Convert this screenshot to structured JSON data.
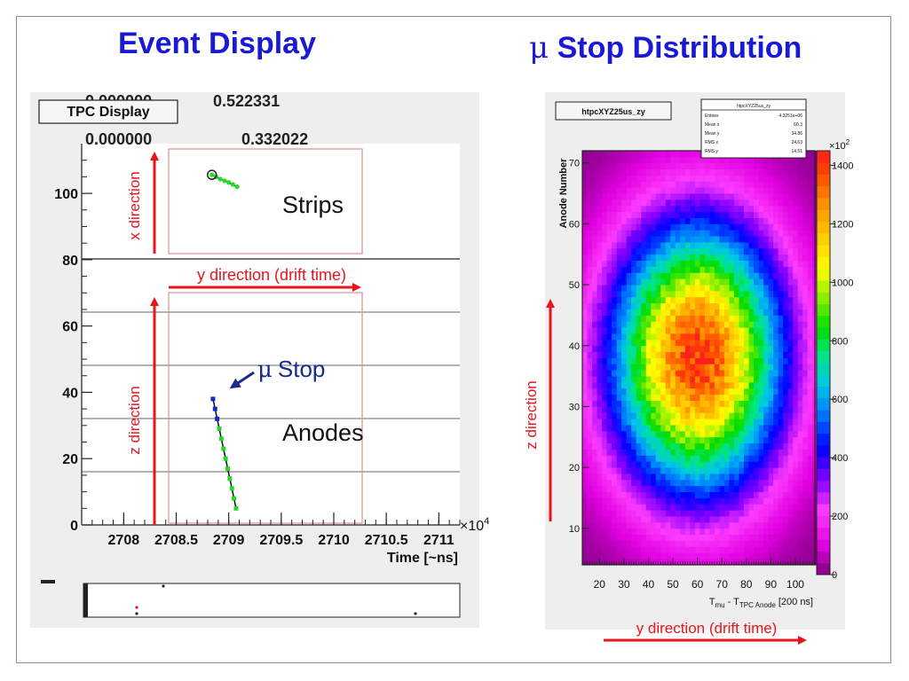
{
  "titles": {
    "left": "Event Display",
    "right_symbol": "μ",
    "right_text": "Stop Distribution"
  },
  "event_display": {
    "box_label": "TPC Display",
    "overlay_values": [
      "0.000000",
      "0.522331",
      "0.000000",
      "0.332022"
    ],
    "region_labels": {
      "strips": "Strips",
      "anodes": "Anodes"
    },
    "annotations": {
      "x_direction": "x direction",
      "z_direction": "z direction",
      "y_direction": "y direction (drift time)",
      "mu_stop_symbol": "μ",
      "mu_stop_text": "Stop"
    },
    "x_axis_title": "Time [~ns]",
    "x_multiplier": "×10",
    "x_multiplier_exp": "4",
    "colors": {
      "annotation_red": "#e8141e",
      "marker_green": "#29d62e",
      "marker_blue": "#1428c8",
      "arrow_navy": "#1a2a8a"
    }
  },
  "chart_data": [
    {
      "type": "scatter",
      "name": "tpc-event-display",
      "title": "",
      "xlabel": "Time [~ns]",
      "ylabel": "",
      "xlim": [
        2707.6,
        2711.2
      ],
      "ylim": [
        0,
        115
      ],
      "x_ticks": [
        2708,
        2708.5,
        2709,
        2709.5,
        2710,
        2710.5,
        2711
      ],
      "x_tick_labels": [
        "2708",
        "2708.5",
        "2709",
        "2709.5",
        "2710",
        "2710.5",
        "2711"
      ],
      "y_ticks": [
        0,
        20,
        40,
        60,
        80,
        100
      ],
      "y_tick_labels": [
        "0",
        "20",
        "40",
        "60",
        "80",
        "100"
      ],
      "strips_track": [
        [
          2708.84,
          105.6
        ],
        [
          2708.88,
          105.0
        ],
        [
          2708.92,
          104.3
        ],
        [
          2708.96,
          103.8
        ],
        [
          2709.0,
          103.3
        ],
        [
          2709.04,
          102.7
        ],
        [
          2709.08,
          102.0
        ]
      ],
      "anodes_track": [
        [
          2708.85,
          38
        ],
        [
          2708.87,
          35
        ],
        [
          2708.89,
          32
        ],
        [
          2708.91,
          29
        ],
        [
          2708.93,
          26
        ],
        [
          2708.95,
          23
        ],
        [
          2708.97,
          20
        ],
        [
          2708.99,
          17
        ],
        [
          2709.01,
          14
        ],
        [
          2709.03,
          11
        ],
        [
          2709.05,
          8
        ],
        [
          2709.07,
          5
        ]
      ],
      "grid": false,
      "legend": "none"
    },
    {
      "type": "heatmap",
      "name": "mu-stop-distribution",
      "box_label": "htpcXYZ25us_zy",
      "stats_title": "htpcXYZ25us_zy",
      "stats": [
        {
          "label": "Entries",
          "value": "4.3251e+06"
        },
        {
          "label": "Mean x",
          "value": "60.3"
        },
        {
          "label": "Mean y",
          "value": "34.86"
        },
        {
          "label": "RMS x",
          "value": "24.63"
        },
        {
          "label": "RMS y",
          "value": "14.51"
        }
      ],
      "xlabel_main": "T",
      "xlabel_sub1": "mu",
      "xlabel_mid": " - T",
      "xlabel_sub2": "TPC Anode",
      "xlabel_tail": " [200 ns]",
      "ylabel": "Anode Number",
      "xlim": [
        13,
        108
      ],
      "ylim": [
        4,
        72
      ],
      "x_ticks": [
        20,
        30,
        40,
        50,
        60,
        70,
        80,
        90,
        100
      ],
      "y_ticks": [
        10,
        20,
        30,
        40,
        50,
        60,
        70
      ],
      "colorbar_multiplier": "×10",
      "colorbar_multiplier_exp": "2",
      "colorbar_ticks": [
        0,
        200,
        400,
        600,
        800,
        1000,
        1200,
        1400
      ],
      "zlim": [
        0,
        1450
      ],
      "peak": {
        "x": 60,
        "y": 38,
        "value": 1400
      },
      "x_annotation": "y direction (drift time)",
      "y_annotation": "z direction"
    }
  ]
}
